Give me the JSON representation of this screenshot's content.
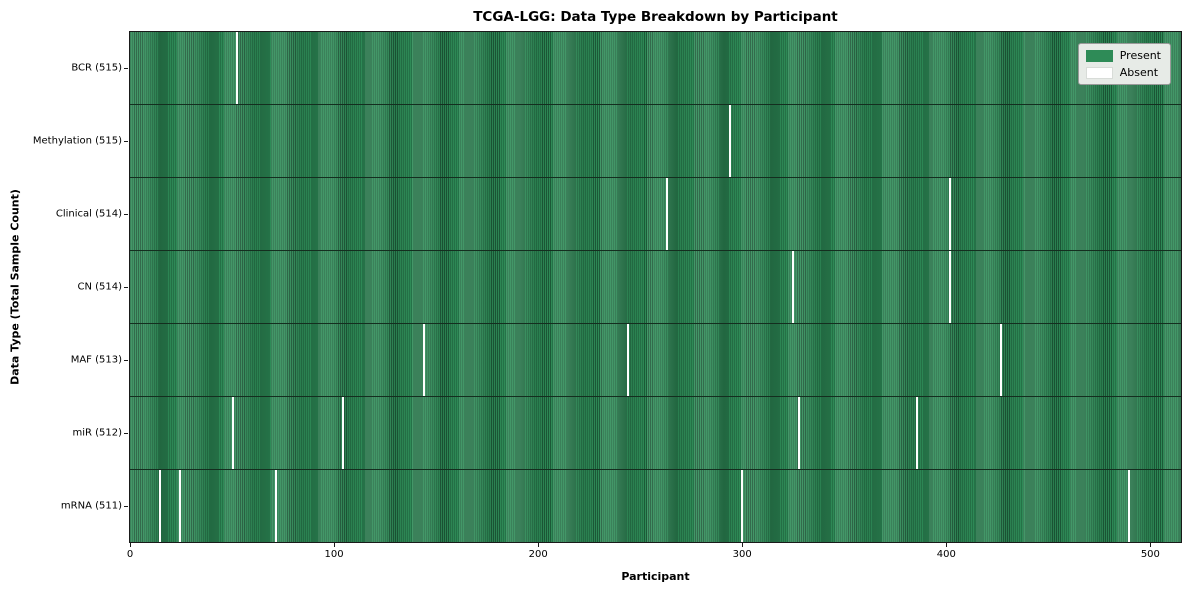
{
  "chart_data": {
    "type": "heatmap",
    "title": "TCGA-LGG: Data Type Breakdown by Participant",
    "xlabel": "Participant",
    "ylabel": "Data Type (Total Sample Count)",
    "x_ticks": [
      0,
      100,
      200,
      300,
      400,
      500
    ],
    "x_range": [
      -0.5,
      515.5
    ],
    "n_participants": 516,
    "grid": false,
    "legend_position": "upper right",
    "legend": [
      {
        "label": "Present",
        "color": "#2e8b57"
      },
      {
        "label": "Absent",
        "color": "#ffffff"
      }
    ],
    "colors": {
      "present": "#2e8b57",
      "absent": "#ffffff",
      "bar_edge": "#1c5a38"
    },
    "rows": [
      {
        "label": "BCR (515)",
        "data_type": "BCR",
        "present_count": 515,
        "absent_participants": [
          52
        ]
      },
      {
        "label": "Methylation (515)",
        "data_type": "Methylation",
        "present_count": 515,
        "absent_participants": [
          294
        ]
      },
      {
        "label": "Clinical (514)",
        "data_type": "Clinical",
        "present_count": 514,
        "absent_participants": [
          263,
          402
        ]
      },
      {
        "label": "CN (514)",
        "data_type": "CN",
        "present_count": 514,
        "absent_participants": [
          325,
          402
        ]
      },
      {
        "label": "MAF (513)",
        "data_type": "MAF",
        "present_count": 513,
        "absent_participants": [
          144,
          244,
          427
        ]
      },
      {
        "label": "miR (512)",
        "data_type": "miR",
        "present_count": 512,
        "absent_participants": [
          50,
          104,
          328,
          386
        ]
      },
      {
        "label": "mRNA (511)",
        "data_type": "mRNA",
        "present_count": 511,
        "absent_participants": [
          14,
          24,
          71,
          300,
          490
        ]
      }
    ]
  }
}
